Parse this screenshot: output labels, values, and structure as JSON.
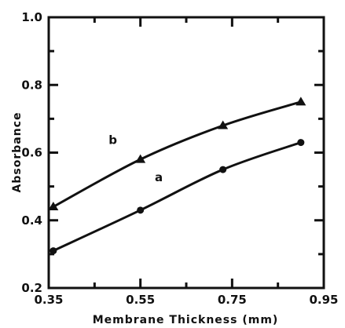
{
  "chart_data": {
    "type": "line",
    "title": "",
    "xlabel": "Membrane Thickness (mm)",
    "ylabel": "Absorbance",
    "xlim": [
      0.35,
      0.95
    ],
    "ylim": [
      0.2,
      1.0
    ],
    "x_ticks": [
      0.35,
      0.55,
      0.75,
      0.95
    ],
    "x_tick_labels": [
      "0.35",
      "0.55",
      "0.75",
      "0.95"
    ],
    "y_ticks": [
      0.2,
      0.4,
      0.6,
      0.8,
      1.0
    ],
    "y_tick_labels": [
      "0.2",
      "0.4",
      "0.6",
      "0.8",
      "1.0"
    ],
    "grid": false,
    "legend": "none",
    "series": [
      {
        "name": "b",
        "marker": "triangle",
        "x": [
          0.36,
          0.55,
          0.73,
          0.9
        ],
        "y": [
          0.44,
          0.58,
          0.68,
          0.75
        ]
      },
      {
        "name": "a",
        "marker": "circle",
        "x": [
          0.36,
          0.55,
          0.73,
          0.9
        ],
        "y": [
          0.31,
          0.43,
          0.55,
          0.63
        ]
      }
    ],
    "series_label_positions": {
      "b": [
        0.49,
        0.625
      ],
      "a": [
        0.59,
        0.515
      ]
    },
    "line_color": "#111111"
  }
}
